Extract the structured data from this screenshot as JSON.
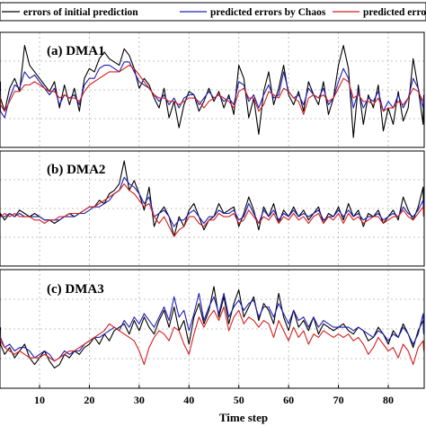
{
  "legend": {
    "items": [
      {
        "label": "errors of initial prediction",
        "color": "#000000"
      },
      {
        "label": "predicted errors by Chaos",
        "color": "#1f1fb4"
      },
      {
        "label": "predicted errors",
        "color": "#d42020"
      }
    ]
  },
  "xlabel": "Time step",
  "chart_data": [
    {
      "type": "line",
      "title": "(a) DMA1",
      "x": [
        1,
        2,
        3,
        4,
        5,
        6,
        7,
        8,
        9,
        10,
        11,
        12,
        13,
        14,
        15,
        16,
        17,
        18,
        19,
        20,
        21,
        22,
        23,
        24,
        25,
        26,
        27,
        28,
        29,
        30,
        31,
        32,
        33,
        34,
        35,
        36,
        37,
        38,
        39,
        40,
        41,
        42,
        43,
        44,
        45,
        46,
        47,
        48,
        49,
        50,
        51,
        52,
        53,
        54,
        55,
        56,
        57,
        58,
        59,
        60,
        61,
        62,
        63,
        64,
        65,
        66,
        67,
        68,
        69,
        70,
        71,
        72,
        73,
        74,
        75,
        76,
        77,
        78,
        79,
        80,
        81,
        82,
        83,
        84,
        85,
        86,
        87,
        88
      ],
      "series": [
        {
          "name": "errors of initial prediction",
          "color": "#000000",
          "values": [
            0.5,
            0.0,
            -0.4,
            0.3,
            0.6,
            0.2,
            1.6,
            1.0,
            0.8,
            0.6,
            0.4,
            0.2,
            0.5,
            -0.3,
            0.4,
            -0.2,
            0.3,
            -0.4,
            0.6,
            0.9,
            0.8,
            1.2,
            1.4,
            1.2,
            1.1,
            1.0,
            1.5,
            1.3,
            0.9,
            0.3,
            0.6,
            0.4,
            0.0,
            -0.3,
            0.3,
            -0.6,
            -0.1,
            -0.9,
            -0.2,
            0.2,
            0.1,
            -0.4,
            -0.1,
            0.3,
            -0.1,
            0.2,
            -0.3,
            0.1,
            -0.5,
            1.0,
            0.6,
            -0.6,
            0.0,
            -1.1,
            0.2,
            0.8,
            -0.2,
            0.3,
            1.0,
            0.1,
            -0.2,
            0.2,
            -0.4,
            0.5,
            0.1,
            -0.2,
            0.5,
            -0.5,
            0.0,
            1.0,
            1.6,
            0.9,
            -1.2,
            0.4,
            -0.8,
            0.1,
            -0.3,
            0.4,
            -1.0,
            -0.3,
            -0.8,
            0.2,
            -0.7,
            -0.3,
            1.2,
            0.3,
            -0.8,
            0.1
          ]
        },
        {
          "name": "predicted errors by Chaos",
          "color": "#1f1fb4",
          "values": [
            0.2,
            -0.4,
            -0.6,
            0.0,
            0.4,
            0.3,
            0.8,
            0.6,
            0.7,
            0.5,
            0.3,
            0.1,
            0.3,
            -0.2,
            0.1,
            0.0,
            0.1,
            -0.2,
            0.4,
            0.6,
            0.6,
            0.9,
            1.0,
            1.0,
            0.9,
            0.8,
            1.1,
            1.1,
            0.8,
            0.5,
            0.4,
            0.3,
            0.1,
            -0.1,
            0.1,
            -0.2,
            0.0,
            -0.3,
            0.0,
            0.1,
            0.1,
            -0.2,
            0.0,
            0.2,
            0.0,
            0.1,
            -0.1,
            0.0,
            -0.2,
            0.5,
            0.4,
            -0.1,
            0.1,
            -0.3,
            0.1,
            0.4,
            0.0,
            0.1,
            0.8,
            0.2,
            0.0,
            0.1,
            -0.2,
            0.3,
            0.1,
            0.0,
            0.3,
            -0.2,
            0.0,
            0.5,
            0.9,
            0.6,
            -0.3,
            0.2,
            -0.3,
            0.0,
            -0.1,
            0.2,
            -0.4,
            -0.1,
            -0.3,
            0.1,
            -0.3,
            0.0,
            0.6,
            0.3,
            -0.3,
            0.0
          ]
        },
        {
          "name": "predicted errors",
          "color": "#d42020",
          "values": [
            0.1,
            -0.2,
            -0.4,
            -0.1,
            0.2,
            0.2,
            0.4,
            0.4,
            0.5,
            0.4,
            0.3,
            0.2,
            0.2,
            0.0,
            0.1,
            0.0,
            0.0,
            -0.1,
            0.2,
            0.4,
            0.5,
            0.6,
            0.7,
            0.8,
            0.8,
            0.8,
            0.9,
            1.0,
            0.9,
            0.7,
            0.5,
            0.3,
            0.1,
            0.0,
            0.0,
            -0.1,
            -0.1,
            -0.2,
            -0.1,
            0.0,
            0.0,
            -0.1,
            -0.3,
            -0.1,
            0.0,
            0.1,
            0.0,
            -0.1,
            -0.3,
            0.2,
            0.3,
            0.0,
            0.0,
            -0.4,
            -0.2,
            0.2,
            0.1,
            0.0,
            0.3,
            0.2,
            0.0,
            -0.1,
            -0.5,
            0.0,
            0.1,
            0.0,
            0.1,
            -0.1,
            0.0,
            0.3,
            0.6,
            0.5,
            0.0,
            0.1,
            -0.1,
            -0.1,
            -0.2,
            0.0,
            -0.4,
            -0.3,
            -0.3,
            -0.1,
            -0.2,
            0.0,
            0.3,
            0.2,
            -0.1,
            -0.1
          ]
        }
      ],
      "xlim": [
        1,
        88
      ],
      "ylim": [
        -1.5,
        2.0
      ],
      "grid": true
    },
    {
      "type": "line",
      "title": "(b) DMA2",
      "x": [
        1,
        2,
        3,
        4,
        5,
        6,
        7,
        8,
        9,
        10,
        11,
        12,
        13,
        14,
        15,
        16,
        17,
        18,
        19,
        20,
        21,
        22,
        23,
        24,
        25,
        26,
        27,
        28,
        29,
        30,
        31,
        32,
        33,
        34,
        35,
        36,
        37,
        38,
        39,
        40,
        41,
        42,
        43,
        44,
        45,
        46,
        47,
        48,
        49,
        50,
        51,
        52,
        53,
        54,
        55,
        56,
        57,
        58,
        59,
        60,
        61,
        62,
        63,
        64,
        65,
        66,
        67,
        68,
        69,
        70,
        71,
        72,
        73,
        74,
        75,
        76,
        77,
        78,
        79,
        80,
        81,
        82,
        83,
        84,
        85,
        86,
        87,
        88
      ],
      "series": [
        {
          "name": "errors of initial prediction",
          "color": "#000000",
          "values": [
            0.0,
            0.1,
            -0.1,
            0.1,
            0.0,
            0.2,
            0.1,
            0.0,
            0.1,
            0.0,
            -0.1,
            -0.1,
            -0.2,
            -0.1,
            0.0,
            0.1,
            0.0,
            0.1,
            0.2,
            0.3,
            0.3,
            0.5,
            0.4,
            0.7,
            0.8,
            1.0,
            1.7,
            0.8,
            1.1,
            0.7,
            0.2,
            0.9,
            -0.3,
            0.1,
            0.3,
            0.0,
            -0.6,
            0.0,
            -0.3,
            0.2,
            0.4,
            0.0,
            -0.4,
            -0.1,
            0.0,
            0.4,
            0.1,
            0.2,
            0.3,
            -0.3,
            0.1,
            0.6,
            0.2,
            -0.4,
            0.3,
            0.0,
            0.4,
            -0.2,
            0.2,
            0.0,
            0.3,
            0.0,
            0.2,
            -0.1,
            0.1,
            0.3,
            -0.2,
            0.1,
            0.0,
            0.3,
            -0.1,
            0.4,
            0.0,
            0.2,
            -0.3,
            0.1,
            0.0,
            0.2,
            -0.2,
            0.0,
            0.2,
            -0.1,
            0.6,
            0.2,
            -0.1,
            0.3,
            0.9,
            0.0
          ]
        },
        {
          "name": "predicted errors by Chaos",
          "color": "#1f1fb4",
          "values": [
            0.0,
            0.0,
            0.0,
            0.1,
            0.0,
            0.1,
            0.0,
            0.0,
            0.0,
            0.0,
            -0.1,
            -0.1,
            -0.1,
            -0.1,
            0.0,
            0.0,
            0.0,
            0.1,
            0.1,
            0.2,
            0.3,
            0.3,
            0.4,
            0.5,
            0.7,
            0.8,
            1.2,
            1.0,
            0.9,
            0.7,
            0.4,
            0.6,
            0.0,
            0.1,
            0.2,
            0.0,
            -0.3,
            -0.1,
            -0.1,
            0.1,
            0.2,
            0.0,
            -0.2,
            0.0,
            0.0,
            0.2,
            0.1,
            0.1,
            0.2,
            -0.1,
            0.0,
            0.4,
            0.1,
            -0.2,
            0.2,
            0.0,
            0.2,
            -0.1,
            0.1,
            0.0,
            0.2,
            0.0,
            0.1,
            0.0,
            0.1,
            0.2,
            -0.1,
            0.0,
            0.0,
            0.2,
            0.0,
            0.2,
            0.0,
            0.1,
            -0.1,
            0.0,
            0.0,
            0.1,
            -0.1,
            0.0,
            0.1,
            0.0,
            0.3,
            0.1,
            0.0,
            0.2,
            0.5,
            0.0
          ]
        },
        {
          "name": "predicted errors",
          "color": "#d42020",
          "values": [
            0.0,
            0.0,
            0.1,
            0.0,
            0.1,
            0.0,
            0.0,
            0.0,
            -0.1,
            -0.1,
            -0.2,
            -0.1,
            -0.1,
            0.0,
            0.0,
            0.1,
            0.1,
            0.1,
            0.2,
            0.3,
            0.3,
            0.4,
            0.5,
            0.6,
            0.7,
            0.8,
            1.0,
            0.8,
            0.7,
            0.5,
            0.3,
            0.4,
            0.0,
            -0.2,
            0.0,
            -0.3,
            -0.6,
            -0.4,
            -0.3,
            0.0,
            0.0,
            -0.2,
            -0.3,
            -0.1,
            -0.1,
            0.1,
            0.0,
            0.0,
            0.1,
            -0.2,
            -0.1,
            0.2,
            0.0,
            -0.2,
            0.0,
            -0.1,
            0.1,
            -0.2,
            0.0,
            -0.1,
            0.1,
            -0.1,
            0.0,
            -0.2,
            0.0,
            0.1,
            -0.2,
            0.0,
            -0.1,
            0.1,
            -0.2,
            0.1,
            -0.1,
            0.0,
            -0.2,
            -0.1,
            0.0,
            0.0,
            -0.2,
            -0.1,
            0.0,
            0.0,
            0.2,
            0.0,
            -0.1,
            0.1,
            0.3,
            0.0
          ]
        }
      ],
      "xlim": [
        1,
        88
      ],
      "ylim": [
        -1.5,
        2.0
      ],
      "grid": true
    },
    {
      "type": "line",
      "title": "(c) DMA3",
      "x": [
        1,
        2,
        3,
        4,
        5,
        6,
        7,
        8,
        9,
        10,
        11,
        12,
        13,
        14,
        15,
        16,
        17,
        18,
        19,
        20,
        21,
        22,
        23,
        24,
        25,
        26,
        27,
        28,
        29,
        30,
        31,
        32,
        33,
        34,
        35,
        36,
        37,
        38,
        39,
        40,
        41,
        42,
        43,
        44,
        45,
        46,
        47,
        48,
        49,
        50,
        51,
        52,
        53,
        54,
        55,
        56,
        57,
        58,
        59,
        60,
        61,
        62,
        63,
        64,
        65,
        66,
        67,
        68,
        69,
        70,
        71,
        72,
        73,
        74,
        75,
        76,
        77,
        78,
        79,
        80,
        81,
        82,
        83,
        84,
        85,
        86,
        87,
        88
      ],
      "series": [
        {
          "name": "errors of initial prediction",
          "color": "#000000",
          "values": [
            0.3,
            -0.2,
            -0.5,
            -0.3,
            -0.6,
            -0.4,
            -0.2,
            -0.6,
            -0.8,
            -0.6,
            -0.4,
            -0.7,
            -0.9,
            -0.8,
            -0.5,
            -0.6,
            -0.4,
            -0.5,
            -0.3,
            -0.2,
            0.0,
            -0.2,
            0.1,
            -0.1,
            0.2,
            0.3,
            0.4,
            0.1,
            0.5,
            0.2,
            0.6,
            0.3,
            0.1,
            0.5,
            0.8,
            0.3,
            0.9,
            0.2,
            0.5,
            -0.2,
            0.6,
            1.0,
            0.4,
            0.8,
            1.5,
            0.6,
            1.2,
            0.4,
            1.0,
            1.4,
            0.6,
            0.9,
            1.2,
            0.5,
            1.0,
            0.8,
            0.4,
            1.3,
            0.6,
            0.2,
            0.8,
            0.3,
            0.5,
            0.2,
            0.6,
            0.1,
            0.4,
            0.3,
            0.2,
            0.3,
            0.4,
            0.2,
            0.1,
            0.3,
            0.2,
            -0.1,
            0.0,
            0.3,
            0.1,
            -0.2,
            0.2,
            0.0,
            0.4,
            0.1,
            -0.3,
            0.2,
            0.5,
            0.1
          ]
        },
        {
          "name": "predicted errors by Chaos",
          "color": "#1f1fb4",
          "values": [
            0.2,
            0.0,
            -0.3,
            -0.2,
            -0.4,
            -0.3,
            -0.3,
            -0.4,
            -0.6,
            -0.5,
            -0.4,
            -0.5,
            -0.7,
            -0.6,
            -0.4,
            -0.5,
            -0.4,
            -0.4,
            -0.2,
            -0.1,
            0.0,
            0.0,
            0.1,
            0.2,
            0.3,
            0.2,
            0.5,
            0.3,
            0.6,
            0.4,
            0.7,
            0.5,
            0.3,
            0.6,
            0.9,
            0.5,
            1.2,
            0.6,
            0.8,
            0.2,
            0.7,
            1.3,
            0.5,
            0.9,
            1.2,
            0.7,
            1.3,
            0.6,
            0.9,
            1.1,
            0.8,
            1.0,
            1.1,
            0.6,
            0.9,
            0.9,
            0.6,
            1.0,
            0.7,
            0.4,
            0.8,
            0.5,
            0.6,
            0.3,
            0.6,
            0.3,
            0.5,
            0.4,
            0.3,
            0.3,
            0.3,
            0.3,
            0.2,
            0.3,
            0.2,
            0.1,
            0.0,
            0.2,
            0.1,
            -0.1,
            0.1,
            0.0,
            0.3,
            0.1,
            -0.2,
            0.1,
            0.7,
            0.1
          ]
        },
        {
          "name": "predicted errors",
          "color": "#d42020",
          "values": [
            0.1,
            -0.1,
            -0.3,
            -0.4,
            -0.5,
            -0.4,
            -0.5,
            -0.6,
            -0.6,
            -0.6,
            -0.5,
            -0.6,
            -0.7,
            -0.6,
            -0.5,
            -0.4,
            -0.4,
            -0.3,
            -0.2,
            -0.1,
            0.0,
            0.1,
            0.2,
            0.4,
            0.3,
            0.2,
            0.1,
            0.0,
            -0.1,
            -0.4,
            -0.8,
            -0.3,
            0.0,
            0.2,
            0.1,
            -0.1,
            0.3,
            0.2,
            -0.2,
            -0.5,
            0.1,
            0.6,
            0.3,
            0.6,
            0.8,
            0.5,
            0.9,
            0.2,
            0.6,
            0.8,
            0.4,
            0.6,
            0.5,
            0.3,
            0.5,
            0.4,
            0.0,
            0.5,
            0.2,
            -0.1,
            0.3,
            0.0,
            0.2,
            -0.2,
            0.1,
            0.0,
            0.2,
            0.1,
            0.0,
            0.1,
            0.0,
            0.1,
            -0.1,
            0.0,
            -0.2,
            -0.5,
            -0.3,
            0.0,
            -0.2,
            -0.4,
            -0.3,
            -0.6,
            -0.2,
            -0.4,
            -0.8,
            -0.3,
            -0.1,
            -0.4
          ]
        }
      ],
      "xlim": [
        1,
        88
      ],
      "ylim": [
        -1.5,
        2.0
      ],
      "grid": true
    }
  ],
  "x_ticks": [
    10,
    20,
    30,
    40,
    50,
    60,
    70,
    80
  ]
}
